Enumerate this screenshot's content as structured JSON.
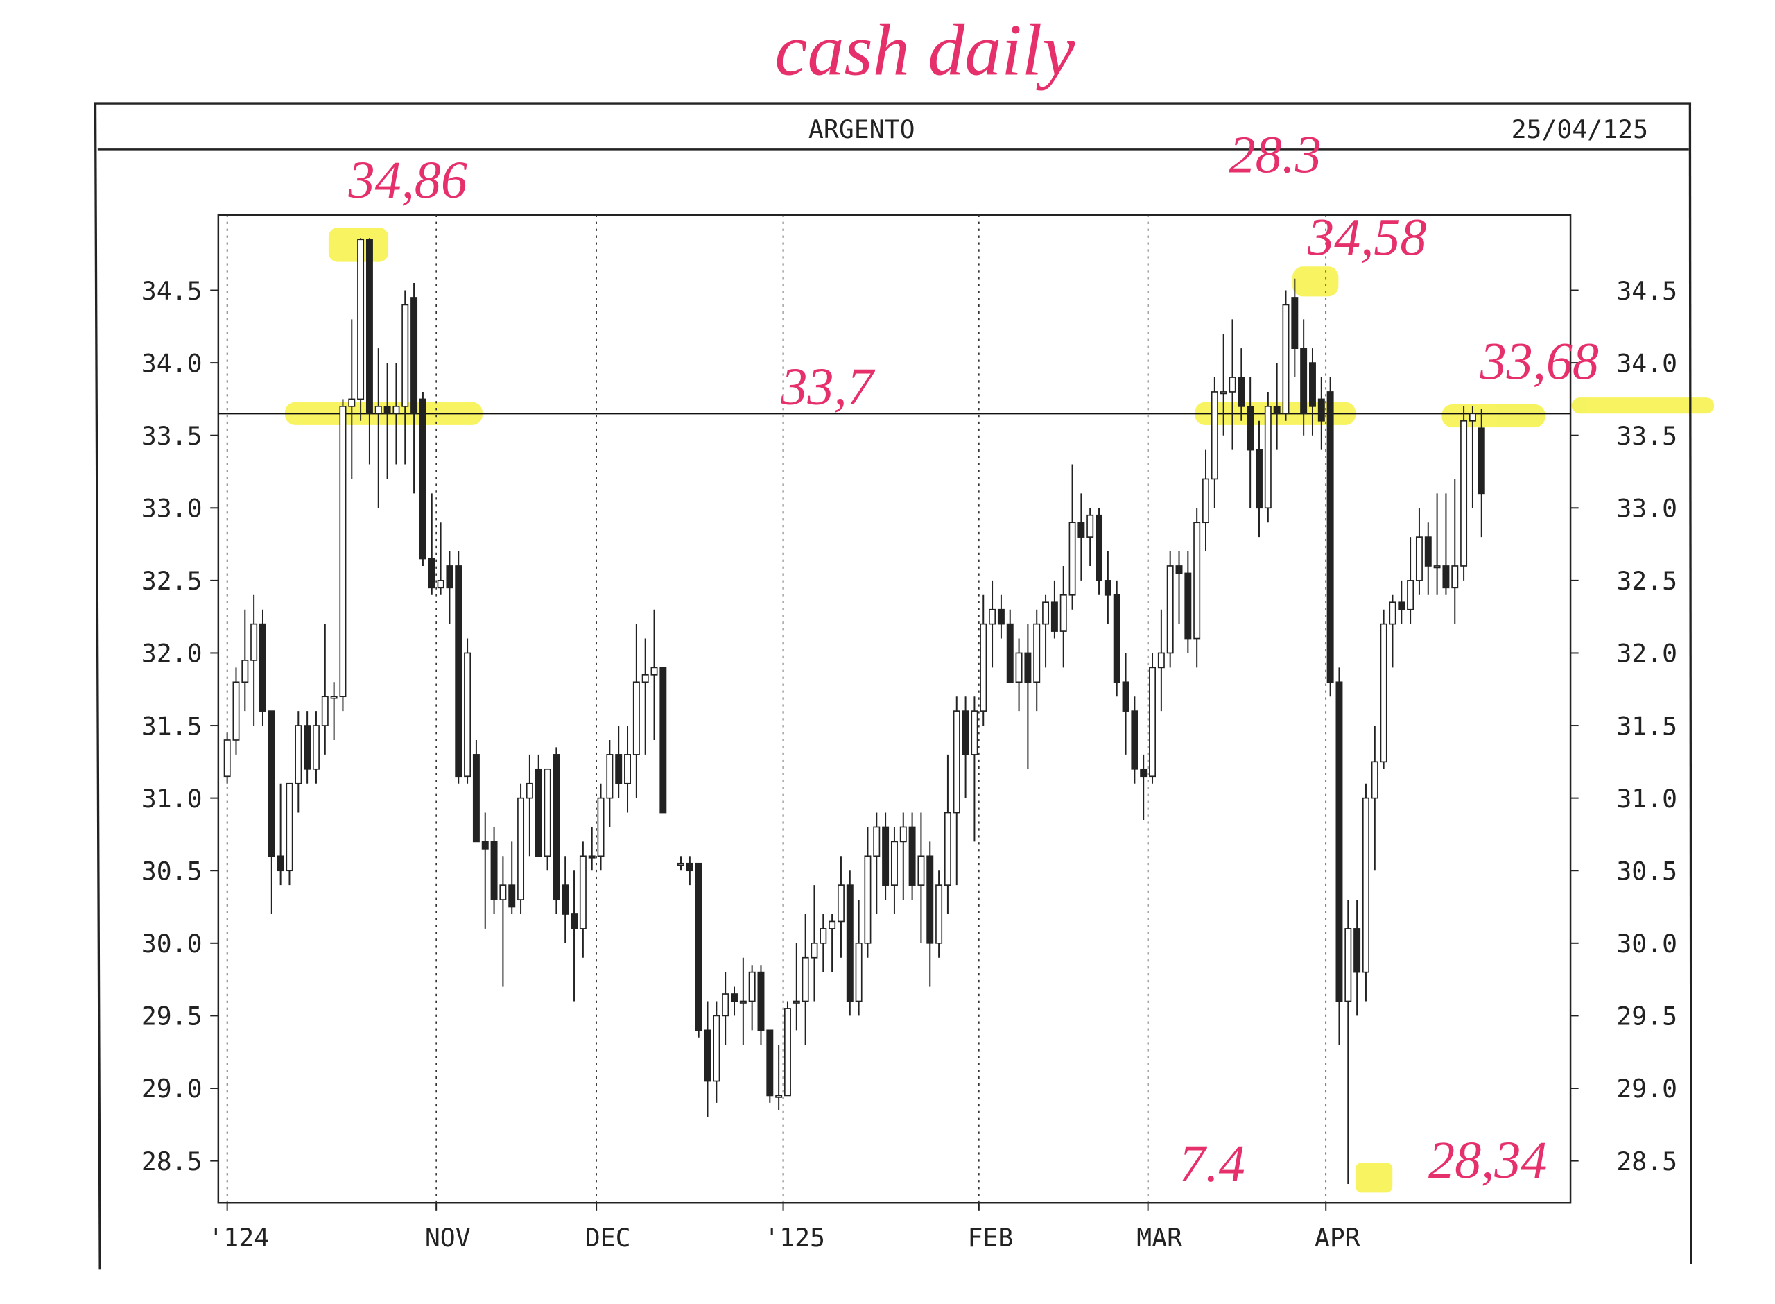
{
  "header": {
    "title": "ARGENTO",
    "date": "25/04/125"
  },
  "chart_data": {
    "type": "candlestick",
    "title": "cash daily",
    "x": [
      0,
      1,
      2,
      3,
      4,
      5,
      6,
      7,
      8,
      9,
      10,
      11,
      12,
      13,
      14,
      15,
      16,
      17,
      18,
      19,
      20,
      21,
      22,
      23,
      24,
      25,
      26,
      27,
      28,
      29,
      30,
      31,
      32,
      33,
      34,
      35,
      36,
      37,
      38,
      39,
      40,
      41,
      42,
      43,
      44,
      45,
      46,
      47,
      48,
      49,
      51,
      52,
      53,
      54,
      55,
      56,
      57,
      58,
      59,
      60,
      61,
      62,
      63,
      64,
      65,
      66,
      67,
      68,
      69,
      70,
      71,
      72,
      73,
      74,
      75,
      76,
      77,
      78,
      79,
      80,
      81,
      82,
      83,
      84,
      85,
      86,
      87,
      88,
      89,
      90,
      91,
      92,
      93,
      94,
      95,
      96,
      97,
      98,
      99,
      100,
      101,
      102,
      103,
      104,
      105,
      106,
      107,
      108,
      109,
      110,
      111,
      112,
      113,
      114,
      115,
      116,
      117,
      118,
      119,
      120,
      121,
      122,
      123,
      124,
      125,
      126,
      127,
      128,
      129,
      130,
      131,
      132,
      133,
      134,
      135,
      136,
      137,
      138,
      139,
      140,
      141
    ],
    "open": [
      31.15,
      31.4,
      31.8,
      31.95,
      32.2,
      31.6,
      30.6,
      30.5,
      31.1,
      31.5,
      31.2,
      31.5,
      31.7,
      31.7,
      33.7,
      33.75,
      34.85,
      33.65,
      33.7,
      33.65,
      33.7,
      34.45,
      33.75,
      32.65,
      32.45,
      32.6,
      32.6,
      31.15,
      31.3,
      30.7,
      30.7,
      30.3,
      30.4,
      30.3,
      31.0,
      31.2,
      30.6,
      31.3,
      30.4,
      30.2,
      30.1,
      30.6,
      30.6,
      31.0,
      31.3,
      31.1,
      31.3,
      31.8,
      31.85,
      31.9,
      30.55,
      30.55,
      30.55,
      29.4,
      29.05,
      29.5,
      29.65,
      29.6,
      29.6,
      29.8,
      29.4,
      28.95,
      28.95,
      29.6,
      29.6,
      29.9,
      30.0,
      30.1,
      30.15,
      30.4,
      29.6,
      30.0,
      30.6,
      30.8,
      30.4,
      30.7,
      30.8,
      30.4,
      30.6,
      30.0,
      30.4,
      30.9,
      31.6,
      31.3,
      31.6,
      32.2,
      32.3,
      32.2,
      31.8,
      32.0,
      31.8,
      32.2,
      32.35,
      32.15,
      32.4,
      32.9,
      32.8,
      32.95,
      32.5,
      32.4,
      31.8,
      31.6,
      31.2,
      31.15,
      31.9,
      32.0,
      32.6,
      32.55,
      32.1,
      32.9,
      33.2,
      33.8,
      33.8,
      33.9,
      33.7,
      33.4,
      33.0,
      33.7,
      33.65,
      34.45,
      34.1,
      34.0,
      33.75,
      33.8,
      31.8,
      29.6,
      30.1,
      29.8,
      31.0,
      31.25,
      32.2,
      32.35,
      32.3,
      32.5,
      32.8,
      32.6,
      32.6,
      32.45,
      32.6,
      33.6,
      33.55
    ],
    "high": [
      31.45,
      31.9,
      32.3,
      32.4,
      32.3,
      31.6,
      31.1,
      31.1,
      31.6,
      31.6,
      31.6,
      32.2,
      31.8,
      33.75,
      34.3,
      34.86,
      34.86,
      34.1,
      34.0,
      34.0,
      34.5,
      34.55,
      33.8,
      33.1,
      32.9,
      32.7,
      32.7,
      32.1,
      31.4,
      30.9,
      30.8,
      30.6,
      30.7,
      31.1,
      31.3,
      31.3,
      31.2,
      31.35,
      30.6,
      30.5,
      30.7,
      30.8,
      31.1,
      31.4,
      31.5,
      31.5,
      32.2,
      32.1,
      32.3,
      31.9,
      30.6,
      30.6,
      30.55,
      29.6,
      29.6,
      29.8,
      29.7,
      29.9,
      29.85,
      29.85,
      29.4,
      29.3,
      29.6,
      30.0,
      30.2,
      30.4,
      30.2,
      30.2,
      30.6,
      30.5,
      30.3,
      30.8,
      30.9,
      30.9,
      30.8,
      30.9,
      30.9,
      30.9,
      30.7,
      30.5,
      31.3,
      31.7,
      31.7,
      31.7,
      32.4,
      32.5,
      32.4,
      32.3,
      32.1,
      32.2,
      32.3,
      32.4,
      32.5,
      32.6,
      33.3,
      33.1,
      33.0,
      33.0,
      32.7,
      32.5,
      32.0,
      31.7,
      31.3,
      32.0,
      32.3,
      32.7,
      32.7,
      32.7,
      33.0,
      33.4,
      33.9,
      34.2,
      34.3,
      34.1,
      33.9,
      33.6,
      33.8,
      34.0,
      34.5,
      34.58,
      34.3,
      34.1,
      33.9,
      33.9,
      31.9,
      30.3,
      30.3,
      31.1,
      31.5,
      32.3,
      32.4,
      32.5,
      32.8,
      33.0,
      32.9,
      33.1,
      33.1,
      33.2,
      33.7,
      33.7,
      33.68
    ],
    "low": [
      31.1,
      31.3,
      31.6,
      31.5,
      31.5,
      30.2,
      30.4,
      30.4,
      30.9,
      31.1,
      31.1,
      31.3,
      31.4,
      31.6,
      33.2,
      33.6,
      33.3,
      33.0,
      33.2,
      33.3,
      33.3,
      33.1,
      32.6,
      32.4,
      32.4,
      32.2,
      31.1,
      31.1,
      30.7,
      30.1,
      30.2,
      29.7,
      30.2,
      30.2,
      30.6,
      30.6,
      30.5,
      30.2,
      30.0,
      29.6,
      29.9,
      30.5,
      30.5,
      30.8,
      31.0,
      30.9,
      31.0,
      31.3,
      31.4,
      30.9,
      30.5,
      30.4,
      29.35,
      28.8,
      28.9,
      29.3,
      29.5,
      29.3,
      29.4,
      29.3,
      28.9,
      28.85,
      28.95,
      29.4,
      29.3,
      29.6,
      29.8,
      29.8,
      29.9,
      29.5,
      29.5,
      29.9,
      30.2,
      30.3,
      30.2,
      30.3,
      30.3,
      30.0,
      29.7,
      29.9,
      30.2,
      30.4,
      31.0,
      30.7,
      31.5,
      31.9,
      32.1,
      31.8,
      31.6,
      31.2,
      31.6,
      31.9,
      32.1,
      31.9,
      32.3,
      32.5,
      32.6,
      32.4,
      32.2,
      31.7,
      31.3,
      31.1,
      30.85,
      31.1,
      31.6,
      31.9,
      32.2,
      32.0,
      31.9,
      32.7,
      33.0,
      33.5,
      33.4,
      33.6,
      33.0,
      32.8,
      32.9,
      33.4,
      33.6,
      33.9,
      33.5,
      33.5,
      33.4,
      31.7,
      29.3,
      28.34,
      29.5,
      29.6,
      30.5,
      31.2,
      31.9,
      32.2,
      32.2,
      32.4,
      32.4,
      32.4,
      32.4,
      32.2,
      32.5,
      33.0,
      32.8
    ],
    "close": [
      31.4,
      31.8,
      31.95,
      32.2,
      31.6,
      30.6,
      30.5,
      31.1,
      31.5,
      31.2,
      31.5,
      31.7,
      31.7,
      33.7,
      33.75,
      34.85,
      33.65,
      33.7,
      33.65,
      33.7,
      34.4,
      33.65,
      32.65,
      32.45,
      32.5,
      32.45,
      31.15,
      32.0,
      30.7,
      30.65,
      30.3,
      30.4,
      30.25,
      31.0,
      31.1,
      30.6,
      31.2,
      30.3,
      30.2,
      30.1,
      30.6,
      30.6,
      31.0,
      31.3,
      31.1,
      31.3,
      31.8,
      31.85,
      31.9,
      30.9,
      30.55,
      30.5,
      29.4,
      29.05,
      29.5,
      29.65,
      29.6,
      29.6,
      29.8,
      29.4,
      28.95,
      28.95,
      29.55,
      29.6,
      29.9,
      30.0,
      30.1,
      30.15,
      30.4,
      29.6,
      30.0,
      30.6,
      30.8,
      30.4,
      30.7,
      30.8,
      30.4,
      30.6,
      30.0,
      30.4,
      30.9,
      31.6,
      31.3,
      31.6,
      32.2,
      32.3,
      32.2,
      31.8,
      32.0,
      31.8,
      32.2,
      32.35,
      32.15,
      32.4,
      32.9,
      32.8,
      32.95,
      32.5,
      32.4,
      31.8,
      31.6,
      31.2,
      31.15,
      31.9,
      32.0,
      32.6,
      32.55,
      32.1,
      32.9,
      33.2,
      33.8,
      33.8,
      33.9,
      33.7,
      33.4,
      33.0,
      33.7,
      33.65,
      34.4,
      34.1,
      33.65,
      33.7,
      33.6,
      31.8,
      29.6,
      30.1,
      29.8,
      31.0,
      31.25,
      32.2,
      32.35,
      32.3,
      32.5,
      32.8,
      32.6,
      32.6,
      32.45,
      32.6,
      33.6,
      33.65,
      33.1
    ],
    "colors": {
      "up": "#ffffff",
      "down": "#222222"
    },
    "xlim": [
      -1,
      151
    ],
    "xticks": [
      {
        "value": 0,
        "label": "'124"
      },
      {
        "value": 23.5,
        "label": "NOV"
      },
      {
        "value": 41.5,
        "label": "DEC"
      },
      {
        "value": 62.5,
        "label": "'125"
      },
      {
        "value": 84.5,
        "label": "FEB"
      },
      {
        "value": 103.5,
        "label": "MAR"
      },
      {
        "value": 123.5,
        "label": "APR"
      }
    ],
    "ylim": [
      28.21,
      35.02
    ],
    "yticks": [
      28.5,
      {
        "value": 29,
        "label": "29.0"
      },
      29.5,
      {
        "value": 30,
        "label": "30.0"
      },
      30.5,
      {
        "value": 31,
        "label": "31.0"
      },
      31.5,
      {
        "value": 32,
        "label": "32.0"
      },
      32.5,
      {
        "value": 33,
        "label": "33.0"
      },
      33.5,
      {
        "value": 34,
        "label": "34.0"
      },
      34.5
    ],
    "grid": true,
    "reference_line": 33.65,
    "annotations": [
      "34,86",
      "28.3",
      "34,58",
      "33,7",
      "33,68",
      "7.4",
      "28,34"
    ]
  }
}
